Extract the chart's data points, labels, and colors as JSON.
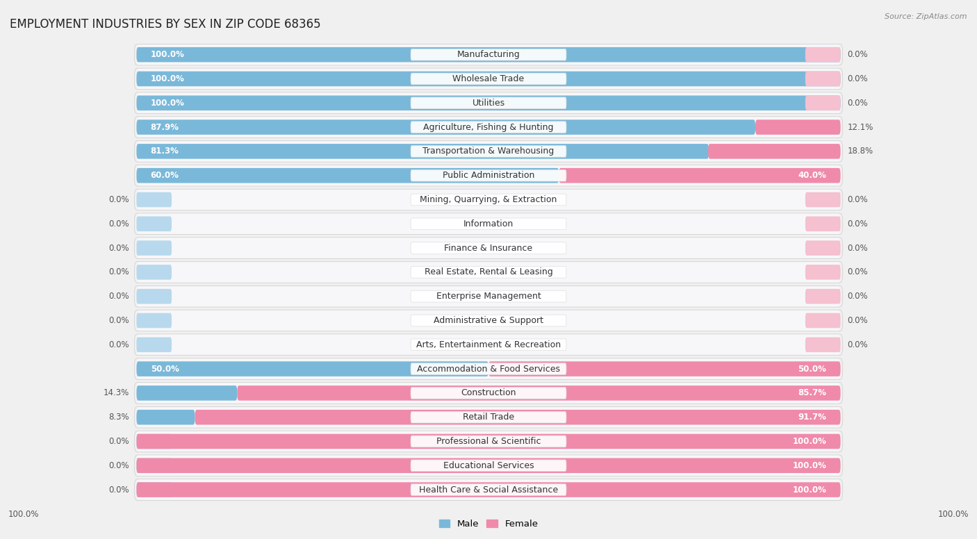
{
  "title": "EMPLOYMENT INDUSTRIES BY SEX IN ZIP CODE 68365",
  "source": "Source: ZipAtlas.com",
  "categories": [
    "Manufacturing",
    "Wholesale Trade",
    "Utilities",
    "Agriculture, Fishing & Hunting",
    "Transportation & Warehousing",
    "Public Administration",
    "Mining, Quarrying, & Extraction",
    "Information",
    "Finance & Insurance",
    "Real Estate, Rental & Leasing",
    "Enterprise Management",
    "Administrative & Support",
    "Arts, Entertainment & Recreation",
    "Accommodation & Food Services",
    "Construction",
    "Retail Trade",
    "Professional & Scientific",
    "Educational Services",
    "Health Care & Social Assistance"
  ],
  "male": [
    100.0,
    100.0,
    100.0,
    87.9,
    81.3,
    60.0,
    0.0,
    0.0,
    0.0,
    0.0,
    0.0,
    0.0,
    0.0,
    50.0,
    14.3,
    8.3,
    0.0,
    0.0,
    0.0
  ],
  "female": [
    0.0,
    0.0,
    0.0,
    12.1,
    18.8,
    40.0,
    0.0,
    0.0,
    0.0,
    0.0,
    0.0,
    0.0,
    0.0,
    50.0,
    85.7,
    91.7,
    100.0,
    100.0,
    100.0
  ],
  "male_color": "#7ab8d9",
  "female_color": "#f08aaa",
  "male_stub_color": "#b8d9ed",
  "female_stub_color": "#f5c0d0",
  "bg_color": "#f0f0f0",
  "bar_bg_color": "#e2e2e6",
  "row_bg_color": "#f7f7f9",
  "title_fontsize": 12,
  "label_fontsize": 9,
  "pct_fontsize": 8.5,
  "legend_male": "Male",
  "legend_female": "Female"
}
